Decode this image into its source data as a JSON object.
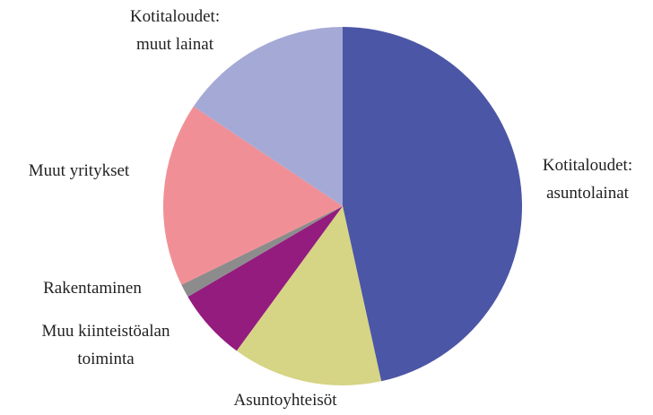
{
  "chart_data": {
    "type": "pie",
    "categories": [
      "Kotitaloudet:\nasuntolainat",
      "Asuntoyhteisöt",
      "Muu kiinteistöalan\ntoiminta",
      "Rakentaminen",
      "Muut yritykset",
      "Kotitaloudet:\nmuut lainat"
    ],
    "values": [
      46.5,
      13.5,
      6.5,
      1.2,
      16.6,
      15.6
    ],
    "colors": [
      "#4c56a6",
      "#d6d485",
      "#931c7e",
      "#8c8c8c",
      "#f09096",
      "#a5a9d6"
    ]
  }
}
